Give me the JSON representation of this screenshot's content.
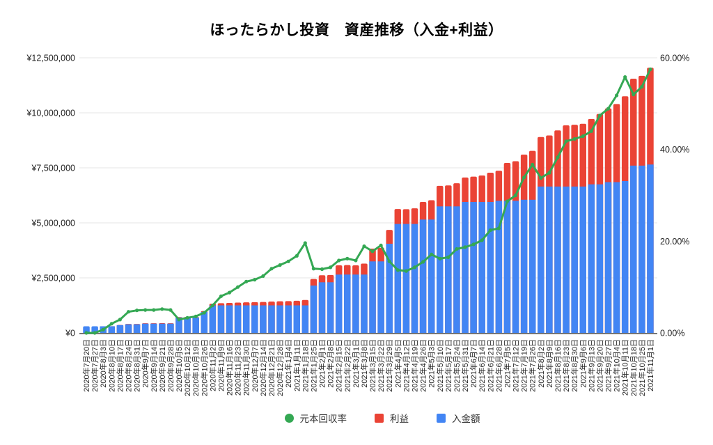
{
  "chart_data": {
    "type": "combo (stacked bar + line)",
    "title": "ほったらかし投資　資産推移（入金+利益）",
    "colors": {
      "grid": "#e6e6e6",
      "baseline": "#757575",
      "axis_label": "#222222",
      "title": "#000000"
    },
    "left_axis": {
      "range": [
        0,
        12500000
      ],
      "tick_values": [
        0,
        2500000,
        5000000,
        7500000,
        10000000,
        12500000
      ],
      "tick_labels": [
        "¥0",
        "¥2,500,000",
        "¥5,000,000",
        "¥7,500,000",
        "¥10,000,000",
        "¥12,500,000"
      ]
    },
    "right_axis": {
      "range": [
        0,
        60
      ],
      "tick_values": [
        0,
        20,
        40,
        60
      ],
      "tick_labels": [
        "0.00%",
        "20.00%",
        "40.00%",
        "60.00%"
      ]
    },
    "legend": {
      "position": "bottom",
      "items": [
        {
          "label": "元本回収率",
          "shape": "circle",
          "color": "#34a853"
        },
        {
          "label": "利益",
          "shape": "square",
          "color": "#ea4335"
        },
        {
          "label": "入金額",
          "shape": "square",
          "color": "#4285f4"
        }
      ]
    },
    "categories": [
      "2020年7月20日",
      "2020年7月27日",
      "2020年8月3日",
      "2020年8月10日",
      "2020年8月17日",
      "2020年8月24日",
      "2020年8月31日",
      "2020年9月7日",
      "2020年9月14日",
      "2020年9月21日",
      "2020年9月28日",
      "2020年10月5日",
      "2020年10月12日",
      "2020年10月19日",
      "2020年10月26日",
      "2020年11月2日",
      "2020年11月9日",
      "2020年11月16日",
      "2020年11月23日",
      "2020年11月30日",
      "2020年12月7日",
      "2020年12月14日",
      "2020年12月21日",
      "2020年12月28日",
      "2021年1月4日",
      "2021年1月11日",
      "2021年1月18日",
      "2021年1月25日",
      "2021年2月1日",
      "2021年2月8日",
      "2021年2月15日",
      "2021年2月22日",
      "2021年3月1日",
      "2021年3月8日",
      "2021年3月15日",
      "2021年3月22日",
      "2021年3月29日",
      "2021年4月5日",
      "2021年4月12日",
      "2021年4月19日",
      "2021年4月26日",
      "2021年5月3日",
      "2021年5月10日",
      "2021年5月17日",
      "2021年5月24日",
      "2021年5月31日",
      "2021年6月7日",
      "2021年6月14日",
      "2021年6月21日",
      "2021年6月28日",
      "2021年7月5日",
      "2021年7月12日",
      "2021年7月19日",
      "2021年7月26日",
      "2021年8月2日",
      "2021年8月9日",
      "2021年8月16日",
      "2021年8月23日",
      "2021年8月30日",
      "2021年9月6日",
      "2021年9月13日",
      "2021年9月20日",
      "2021年9月27日",
      "2021年10月4日",
      "2021年10月11日",
      "2021年10月18日",
      "2021年10月25日",
      "2021年11月1日"
    ],
    "series": [
      {
        "name": "入金額",
        "type": "bar",
        "stacked": true,
        "axis": "left",
        "color": "#4285f4",
        "values": [
          300000,
          300000,
          300000,
          300000,
          350000,
          390000,
          390000,
          420000,
          420000,
          420000,
          420000,
          700000,
          700000,
          700000,
          950000,
          1250000,
          1250000,
          1250000,
          1250000,
          1250000,
          1250000,
          1250000,
          1250000,
          1250000,
          1250000,
          1250000,
          1250000,
          2150000,
          2300000,
          2300000,
          2650000,
          2650000,
          2650000,
          2650000,
          3250000,
          3250000,
          4050000,
          4950000,
          4950000,
          4950000,
          5150000,
          5150000,
          5750000,
          5750000,
          5750000,
          5950000,
          5950000,
          5950000,
          5950000,
          6000000,
          6000000,
          6000000,
          6050000,
          6050000,
          6650000,
          6650000,
          6650000,
          6650000,
          6650000,
          6650000,
          6750000,
          6750000,
          6850000,
          6850000,
          6900000,
          7600000,
          7600000,
          7650000
        ]
      },
      {
        "name": "利益",
        "type": "bar",
        "stacked": true,
        "axis": "left",
        "color": "#ea4335",
        "values": [
          0,
          0,
          2000,
          6000,
          10000,
          18000,
          19000,
          21000,
          21000,
          22000,
          21000,
          20000,
          23000,
          25000,
          42000,
          75000,
          100000,
          110000,
          125000,
          140000,
          145000,
          155000,
          175000,
          185000,
          195000,
          210000,
          245000,
          300000,
          320000,
          330000,
          420000,
          430000,
          420000,
          500000,
          580000,
          620000,
          630000,
          680000,
          670000,
          710000,
          800000,
          880000,
          930000,
          950000,
          1050000,
          1110000,
          1150000,
          1200000,
          1330000,
          1370000,
          1720000,
          1800000,
          2050000,
          2220000,
          2250000,
          2320000,
          2550000,
          2780000,
          2810000,
          2850000,
          2970000,
          3200000,
          3350000,
          3550000,
          3850000,
          3950000,
          4080000,
          4400000
        ]
      },
      {
        "name": "元本回収率",
        "type": "line",
        "axis": "right",
        "unit": "%",
        "color": "#34a853",
        "values": [
          0.0,
          0.0,
          0.7,
          2.0,
          2.9,
          4.6,
          4.9,
          5.0,
          5.0,
          5.2,
          5.0,
          2.9,
          3.3,
          3.6,
          4.4,
          6.0,
          8.0,
          8.8,
          10.0,
          11.2,
          11.6,
          12.4,
          14.0,
          14.8,
          15.6,
          16.8,
          19.6,
          14.0,
          13.9,
          14.3,
          15.8,
          16.2,
          15.8,
          18.9,
          17.8,
          19.1,
          15.6,
          13.7,
          13.5,
          14.3,
          15.5,
          17.1,
          16.2,
          16.5,
          18.3,
          18.7,
          19.3,
          20.2,
          22.4,
          22.8,
          28.7,
          30.0,
          33.9,
          36.7,
          33.8,
          34.9,
          38.3,
          41.8,
          42.3,
          42.9,
          44.0,
          47.4,
          48.9,
          51.8,
          55.8,
          52.0,
          53.7,
          57.5
        ]
      }
    ]
  }
}
